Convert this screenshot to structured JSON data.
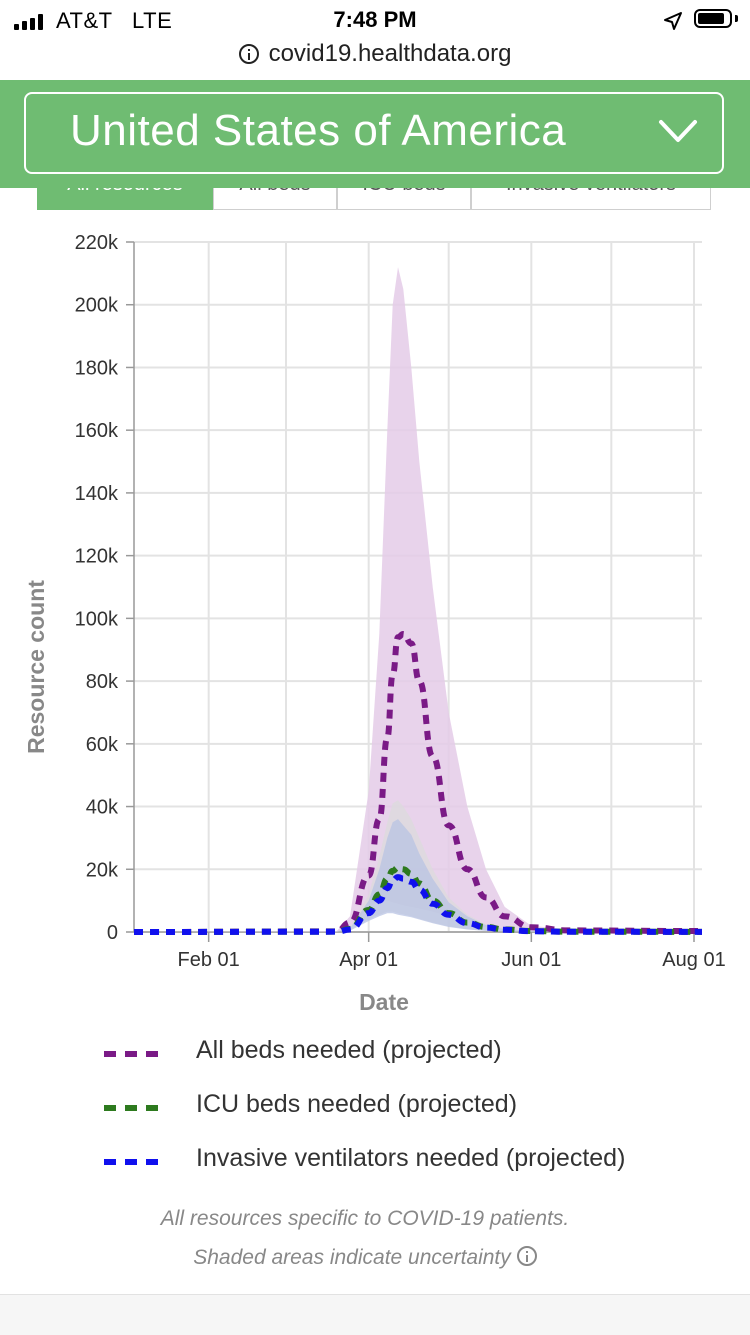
{
  "status_bar": {
    "carrier": "AT&T   LTE",
    "time": "7:48 PM"
  },
  "browser": {
    "url": "covid19.healthdata.org"
  },
  "header": {
    "country": "United States of America"
  },
  "tabs": [
    "All resources",
    "All beds",
    "ICU beds",
    "Invasive ventilators"
  ],
  "colors": {
    "header_green": "#6fbc72",
    "all_beds": "#7a1a86",
    "icu_beds": "#2d7a1e",
    "ventilators": "#1010ee",
    "all_beds_band": "#e4cbe8",
    "icu_band": "#dcdcdc",
    "vent_band": "#b8c3e3"
  },
  "chart_data": {
    "type": "line",
    "xlabel": "Date",
    "ylabel": "Resource count",
    "x_ticks": [
      "Feb 01",
      "Apr 01",
      "Jun 01",
      "Aug 01"
    ],
    "y_ticks": [
      "0",
      "20k",
      "40k",
      "60k",
      "80k",
      "100k",
      "120k",
      "140k",
      "160k",
      "180k",
      "200k",
      "220k"
    ],
    "ylim": [
      0,
      220000
    ],
    "xlim": [
      "2020-01-04",
      "2020-08-04"
    ],
    "grid": true,
    "x": [
      "2020-01-04",
      "2020-03-20",
      "2020-03-25",
      "2020-04-01",
      "2020-04-05",
      "2020-04-08",
      "2020-04-10",
      "2020-04-12",
      "2020-04-14",
      "2020-04-17",
      "2020-04-20",
      "2020-04-25",
      "2020-05-01",
      "2020-05-08",
      "2020-05-15",
      "2020-05-22",
      "2020-06-01",
      "2020-06-15",
      "2020-08-04"
    ],
    "series": [
      {
        "name": "All beds needed (projected)",
        "values": [
          0,
          200,
          3000,
          18000,
          36000,
          62000,
          82000,
          94000,
          95000,
          92000,
          80000,
          56000,
          34000,
          20000,
          11000,
          5000,
          1500,
          500,
          300
        ],
        "lower": [
          0,
          100,
          1500,
          8000,
          10000,
          10000,
          9500,
          9000,
          8500,
          8000,
          7500,
          6500,
          5000,
          3000,
          1500,
          800,
          300,
          100,
          50
        ],
        "upper": [
          0,
          300,
          5000,
          45000,
          95000,
          160000,
          200000,
          212000,
          205000,
          180000,
          150000,
          110000,
          70000,
          40000,
          20000,
          8000,
          2000,
          800,
          400
        ]
      },
      {
        "name": "ICU beds needed (projected)",
        "values": [
          0,
          100,
          1000,
          7000,
          12000,
          17000,
          19500,
          20500,
          20000,
          18500,
          15500,
          10000,
          6000,
          3000,
          1600,
          800,
          300,
          100,
          50
        ],
        "lower": [
          0,
          50,
          500,
          4000,
          5500,
          6500,
          6500,
          6000,
          5600,
          5000,
          4200,
          3000,
          1800,
          900,
          400,
          200,
          80,
          40,
          20
        ],
        "upper": [
          0,
          150,
          1500,
          12000,
          24000,
          35000,
          41000,
          42000,
          40000,
          36000,
          30000,
          20000,
          11000,
          5500,
          2500,
          1100,
          400,
          150,
          80
        ]
      },
      {
        "name": "Invasive ventilators needed (projected)",
        "values": [
          0,
          100,
          800,
          6000,
          10000,
          14000,
          16500,
          17500,
          17000,
          16000,
          13500,
          9000,
          5500,
          2800,
          1400,
          700,
          250,
          80,
          40
        ],
        "lower": [
          0,
          50,
          400,
          3500,
          5000,
          6000,
          6000,
          5500,
          5200,
          4700,
          4000,
          2800,
          1600,
          800,
          350,
          180,
          70,
          30,
          15
        ],
        "upper": [
          0,
          150,
          1200,
          10000,
          20000,
          30000,
          35000,
          36000,
          34000,
          31000,
          25000,
          17000,
          9500,
          5000,
          2200,
          900,
          350,
          120,
          60
        ]
      }
    ]
  },
  "notes": {
    "line1": "All resources specific to COVID-19 patients.",
    "line2": "Shaded areas indicate uncertainty"
  }
}
